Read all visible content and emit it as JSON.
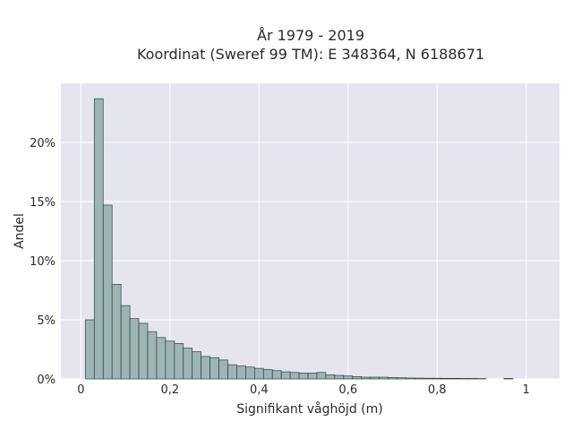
{
  "chart_data": {
    "type": "bar",
    "title_line1": "År 1979 - 2019",
    "title_line2": "Koordinat (Sweref 99 TM): E 348364, N 6188671",
    "xlabel": "Signifikant våghöjd (m)",
    "ylabel": "Andel",
    "xlim": [
      -0.045,
      1.075
    ],
    "ylim": [
      0,
      25
    ],
    "x_ticks": [
      {
        "value": 0,
        "label": "0"
      },
      {
        "value": 0.2,
        "label": "0,2"
      },
      {
        "value": 0.4,
        "label": "0,4"
      },
      {
        "value": 0.6,
        "label": "0,6"
      },
      {
        "value": 0.8,
        "label": "0,8"
      },
      {
        "value": 1.0,
        "label": "1"
      }
    ],
    "y_ticks": [
      {
        "value": 0,
        "label": "0%"
      },
      {
        "value": 5,
        "label": "5%"
      },
      {
        "value": 10,
        "label": "10%"
      },
      {
        "value": 15,
        "label": "15%"
      },
      {
        "value": 20,
        "label": "20%"
      }
    ],
    "bin_width": 0.02,
    "bins_start": [
      0.01,
      0.03,
      0.05,
      0.07,
      0.09,
      0.11,
      0.13,
      0.15,
      0.17,
      0.19,
      0.21,
      0.23,
      0.25,
      0.27,
      0.29,
      0.31,
      0.33,
      0.35,
      0.37,
      0.39,
      0.41,
      0.43,
      0.45,
      0.47,
      0.49,
      0.51,
      0.53,
      0.55,
      0.57,
      0.59,
      0.61,
      0.63,
      0.65,
      0.67,
      0.69,
      0.71,
      0.73,
      0.75,
      0.77,
      0.79,
      0.81,
      0.83,
      0.85,
      0.87,
      0.89,
      0.95
    ],
    "values": [
      5.0,
      23.7,
      14.7,
      8.0,
      6.2,
      5.1,
      4.7,
      4.0,
      3.5,
      3.2,
      3.0,
      2.6,
      2.3,
      1.9,
      1.8,
      1.6,
      1.2,
      1.1,
      1.0,
      0.9,
      0.8,
      0.7,
      0.6,
      0.55,
      0.5,
      0.5,
      0.55,
      0.35,
      0.3,
      0.25,
      0.2,
      0.15,
      0.15,
      0.15,
      0.12,
      0.1,
      0.08,
      0.07,
      0.06,
      0.06,
      0.05,
      0.05,
      0.04,
      0.04,
      0.03,
      0.04
    ],
    "grid": true,
    "colors": {
      "plot_background": "#e5e5f0",
      "grid": "#ffffff",
      "bar_fill": "#9db5b5",
      "bar_edge": "#2f3f3f"
    }
  }
}
